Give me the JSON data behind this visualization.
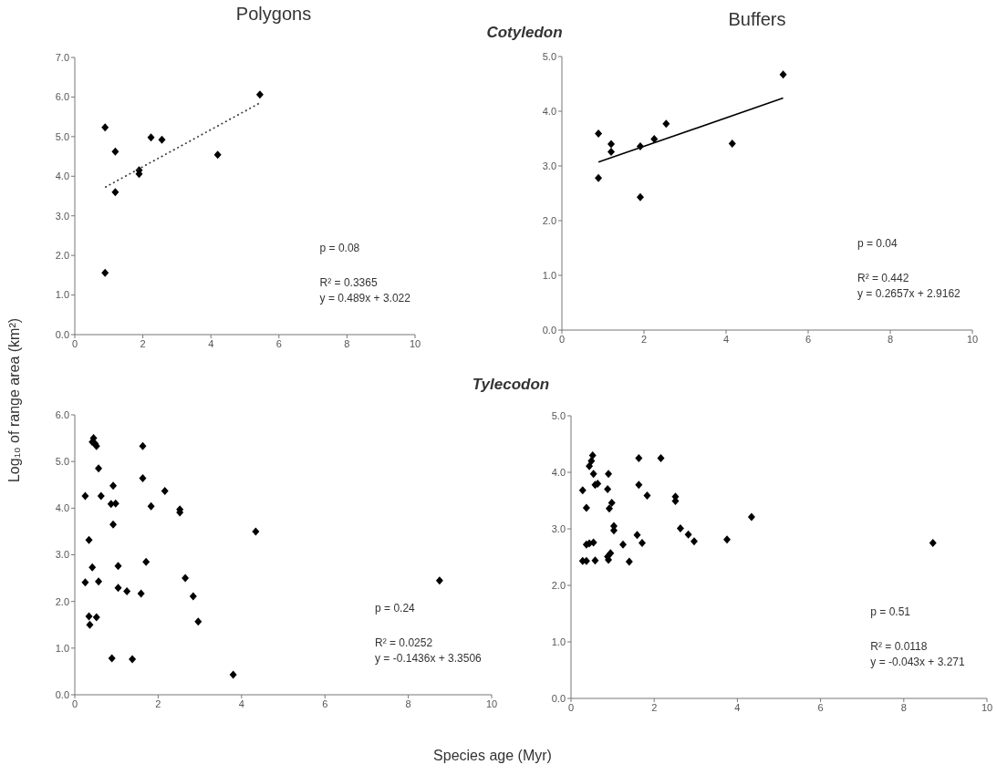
{
  "chart_data": [
    {
      "type": "scatter",
      "title": "Polygons",
      "marker": "diamond",
      "xlim": [
        0,
        10
      ],
      "xticks": [
        0,
        2,
        4,
        6,
        8,
        10
      ],
      "ylim": [
        0,
        7
      ],
      "yticks": [
        {
          "value": 0,
          "label": "0.0"
        },
        {
          "value": 1,
          "label": "1.0"
        },
        {
          "value": 2,
          "label": "2.0"
        },
        {
          "value": 3,
          "label": "3.0"
        },
        {
          "value": 4,
          "label": "4.0"
        },
        {
          "value": 5,
          "label": "5.0"
        },
        {
          "value": 6,
          "label": "6.0"
        },
        {
          "value": 7,
          "label": "7.0"
        }
      ],
      "series": [
        {
          "color": "#000000",
          "x": [
            0.89,
            1.19,
            1.19,
            0.89,
            1.89,
            1.89,
            2.24,
            2.56,
            4.2,
            5.44
          ],
          "values": [
            5.23,
            4.62,
            3.6,
            1.56,
            4.15,
            4.06,
            4.98,
            4.92,
            4.54,
            6.06
          ]
        },
        {
          "type": "line",
          "marker": "none",
          "line_style": "dotted",
          "color": "#333333",
          "x": [
            0.89,
            5.44
          ],
          "values": [
            3.72,
            5.85
          ]
        }
      ],
      "annotations": [
        "p = 0.08",
        "R² = 0.3365",
        "y = 0.489x + 3.022"
      ]
    },
    {
      "type": "scatter",
      "title": "Buffers",
      "subtitle": "Cotyledon",
      "marker": "diamond",
      "xlim": [
        0,
        10
      ],
      "xticks": [
        0,
        2,
        4,
        6,
        8,
        10
      ],
      "ylim": [
        0,
        5
      ],
      "yticks": [
        {
          "value": 0,
          "label": "0.0"
        },
        {
          "value": 1,
          "label": "1.0"
        },
        {
          "value": 2,
          "label": "2.0"
        },
        {
          "value": 3,
          "label": "3.0"
        },
        {
          "value": 4,
          "label": "4.0"
        },
        {
          "value": 5,
          "label": "5.0"
        }
      ],
      "series": [
        {
          "color": "#000000",
          "x": [
            0.89,
            0.89,
            1.2,
            1.2,
            1.91,
            1.91,
            2.25,
            2.54,
            4.15,
            5.39
          ],
          "values": [
            3.59,
            2.78,
            3.4,
            3.26,
            3.36,
            2.43,
            3.49,
            3.77,
            3.41,
            4.67
          ]
        },
        {
          "type": "line",
          "marker": "none",
          "line_style": "solid",
          "color": "#000000",
          "x": [
            0.89,
            5.39
          ],
          "values": [
            3.07,
            4.24
          ]
        }
      ],
      "annotations": [
        "p = 0.04",
        "R² = 0.442",
        "y = 0.2657x + 2.9162"
      ]
    },
    {
      "type": "scatter",
      "ylabel": "Log₁₀ of range area (km²)",
      "marker": "diamond",
      "xlim": [
        0,
        10
      ],
      "xticks": [
        0,
        2,
        4,
        6,
        8,
        10
      ],
      "ylim": [
        0,
        6
      ],
      "yticks": [
        {
          "value": 0,
          "label": "0.0"
        },
        {
          "value": 1,
          "label": "1.0"
        },
        {
          "value": 2,
          "label": "2.0"
        },
        {
          "value": 3,
          "label": "3.0"
        },
        {
          "value": 4,
          "label": "4.0"
        },
        {
          "value": 5,
          "label": "5.0"
        },
        {
          "value": 6,
          "label": "6.0"
        }
      ],
      "series": [
        {
          "color": "#000000",
          "x": [
            0.45,
            0.42,
            0.49,
            0.52,
            0.57,
            0.25,
            0.63,
            0.92,
            0.87,
            0.98,
            0.92,
            0.34,
            0.42,
            0.25,
            0.57,
            1.04,
            1.04,
            1.25,
            1.59,
            0.34,
            0.52,
            0.36,
            0.89,
            1.38,
            1.63,
            1.63,
            1.83,
            2.16,
            2.52,
            2.52,
            1.71,
            2.65,
            2.84,
            2.96,
            3.8,
            4.34,
            8.75
          ],
          "values": [
            5.5,
            5.42,
            5.38,
            5.33,
            4.85,
            4.26,
            4.26,
            4.48,
            4.09,
            4.1,
            3.65,
            3.32,
            2.73,
            2.41,
            2.43,
            2.76,
            2.29,
            2.22,
            2.17,
            1.68,
            1.66,
            1.5,
            0.78,
            0.76,
            5.33,
            4.64,
            4.04,
            4.37,
            3.97,
            3.91,
            2.85,
            2.5,
            2.11,
            1.57,
            0.43,
            3.5,
            2.45
          ]
        }
      ],
      "annotations": [
        "p = 0.24",
        "R² = 0.0252",
        "y = -0.1436x + 3.3506"
      ]
    },
    {
      "type": "scatter",
      "subtitle": "Tylecodon",
      "xlabel": "Species age (Myr)",
      "marker": "diamond",
      "xlim": [
        0,
        10
      ],
      "xticks": [
        0,
        2,
        4,
        6,
        8,
        10
      ],
      "ylim": [
        0,
        5
      ],
      "yticks": [
        {
          "value": 0,
          "label": "0.0"
        },
        {
          "value": 1,
          "label": "1.0"
        },
        {
          "value": 2,
          "label": "2.0"
        },
        {
          "value": 3,
          "label": "3.0"
        },
        {
          "value": 4,
          "label": "4.0"
        },
        {
          "value": 5,
          "label": "5.0"
        }
      ],
      "series": [
        {
          "color": "#000000",
          "x": [
            0.52,
            0.49,
            0.44,
            0.54,
            0.58,
            0.64,
            0.28,
            0.37,
            0.9,
            0.88,
            0.98,
            0.92,
            1.03,
            1.03,
            0.37,
            0.44,
            0.54,
            0.28,
            0.37,
            0.58,
            0.9,
            0.95,
            0.88,
            1.25,
            1.4,
            1.63,
            2.16,
            1.63,
            1.83,
            2.51,
            2.51,
            1.59,
            1.71,
            2.63,
            2.82,
            2.96,
            3.75,
            4.34,
            8.7
          ],
          "values": [
            4.3,
            4.2,
            4.11,
            3.97,
            3.78,
            3.8,
            3.68,
            3.37,
            3.97,
            3.7,
            3.46,
            3.36,
            3.05,
            2.97,
            2.72,
            2.74,
            2.76,
            2.43,
            2.43,
            2.44,
            2.45,
            2.57,
            2.51,
            2.72,
            2.42,
            4.25,
            4.25,
            3.78,
            3.59,
            3.57,
            3.49,
            2.89,
            2.75,
            3.01,
            2.9,
            2.78,
            2.81,
            3.21,
            2.75
          ]
        }
      ],
      "annotations": [
        "p = 0.51",
        "R² = 0.0118",
        "y = -0.043x + 3.271"
      ]
    }
  ]
}
